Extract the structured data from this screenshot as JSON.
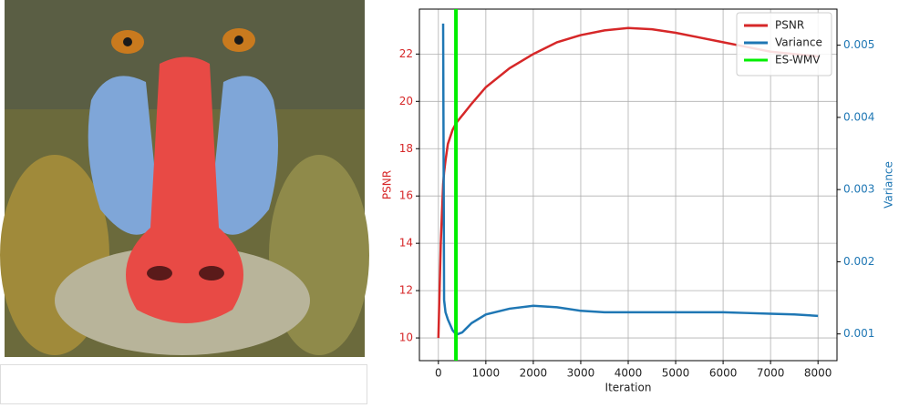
{
  "chart_data": {
    "type": "line",
    "x": [
      0,
      50,
      100,
      120,
      150,
      200,
      300,
      380,
      500,
      700,
      1000,
      1500,
      2000,
      2500,
      3000,
      3500,
      4000,
      4500,
      5000,
      5500,
      6000,
      6500,
      7000,
      7500,
      8000
    ],
    "series": [
      {
        "name": "PSNR",
        "color": "#d62728",
        "values": [
          10,
          14,
          16.5,
          17,
          17.5,
          18.2,
          18.8,
          19.1,
          19.4,
          19.9,
          20.6,
          21.4,
          22.0,
          22.5,
          22.8,
          23.0,
          23.1,
          23.05,
          22.9,
          22.7,
          22.5,
          22.3,
          22.1,
          22.0,
          21.9
        ]
      },
      {
        "name": "Variance",
        "color": "#1f77b4",
        "axis": "y2",
        "values": [
          null,
          null,
          0.0053,
          0.00147,
          0.0013,
          0.0012,
          0.00105,
          0.00099,
          0.00102,
          0.00115,
          0.00127,
          0.00135,
          0.00139,
          0.00137,
          0.00132,
          0.0013,
          0.0013,
          0.0013,
          0.0013,
          0.0013,
          0.0013,
          0.00129,
          0.00128,
          0.00127,
          0.00125
        ]
      }
    ],
    "markers": [
      {
        "name": "ES-WMV",
        "color": "#00ee00",
        "x": 370
      }
    ],
    "xlabel": "Iteration",
    "ylabel": "PSNR",
    "y2label": "Variance",
    "xlim": [
      -400,
      8400
    ],
    "xticks": [
      0,
      1000,
      2000,
      3000,
      4000,
      5000,
      6000,
      7000,
      8000
    ],
    "ylim": [
      9.04,
      23.9
    ],
    "yticks": [
      10,
      12,
      14,
      16,
      18,
      20,
      22
    ],
    "y2lim": [
      0.00063,
      0.0055
    ],
    "y2ticks": [
      0.001,
      0.002,
      0.003,
      0.004,
      0.005
    ],
    "grid": true,
    "legend": "upper right"
  }
}
